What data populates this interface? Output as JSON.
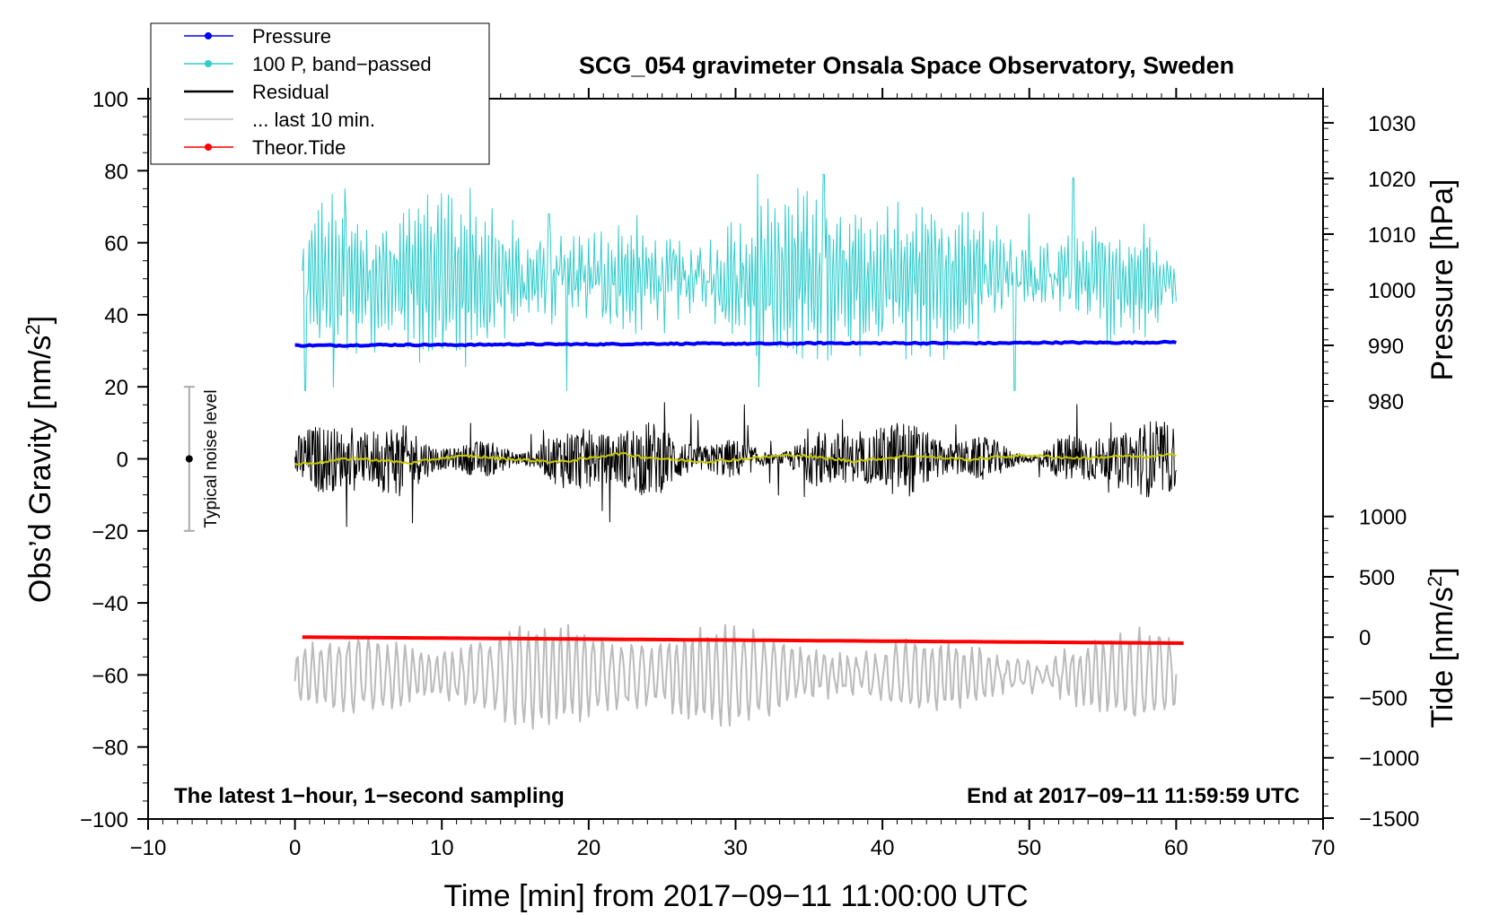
{
  "chart_data": {
    "type": "line",
    "title": "SCG_054 gravimeter Onsala Space Observatory, Sweden",
    "xlabel": "Time [min] from 2017−09−11 11:00:00 UTC",
    "ylabel_main": "Obs’d Gravity [nm/s",
    "ylabel_sup": "2",
    "ylabel_close": "]",
    "ylabel_pressure": "Pressure [hPa]",
    "ylabel_tide": "Tide [nm/s",
    "ylabel_tide_sup": "2",
    "ylabel_tide_close": "]",
    "xlim": [
      -10,
      70
    ],
    "ylim": [
      -100,
      100
    ],
    "x_ticks": [
      "−10",
      "0",
      "10",
      "20",
      "30",
      "40",
      "50",
      "60",
      "70"
    ],
    "x_tick_values": [
      -10,
      0,
      10,
      20,
      30,
      40,
      50,
      60,
      70
    ],
    "y_ticks": [
      "100",
      "80",
      "60",
      "40",
      "20",
      "0",
      "−20",
      "−40",
      "−60",
      "−80",
      "−100"
    ],
    "y_tick_values": [
      100,
      80,
      60,
      40,
      20,
      0,
      -20,
      -40,
      -60,
      -80,
      -100
    ],
    "pressure_axis": {
      "ticks": [
        "1030",
        "1020",
        "1010",
        "1000",
        "990",
        "980"
      ],
      "values": [
        1030,
        1020,
        1010,
        1000,
        990,
        980
      ],
      "gravity_at_990": 31.5,
      "gravity_per_hPa": 1.545
    },
    "tide_axis": {
      "ticks": [
        "1000",
        "500",
        "0",
        "−500",
        "−1000",
        "−1500"
      ],
      "values": [
        1000,
        500,
        0,
        -500,
        -1000,
        -1500
      ],
      "gravity_at_0": -49.5,
      "gravity_per_unit": 0.0335
    },
    "bottom_left_note": "The latest 1−hour, 1−second sampling",
    "bottom_right_note": "End at 2017−09−11 11:59:59 UTC",
    "noise_bar": {
      "label": "Typical noise level",
      "x": -7.2,
      "center": 0,
      "low": -20,
      "high": 20
    },
    "legend": [
      {
        "label": "Pressure",
        "color": "#0000ff",
        "marker": true
      },
      {
        "label": "100 P, band−passed",
        "color": "#33cccc",
        "marker": true
      },
      {
        "label": "Residual",
        "color": "#000000",
        "marker": false
      },
      {
        "label": "... last 10 min.",
        "color": "#bbbbbb",
        "marker": false
      },
      {
        "label": "Theor.Tide",
        "color": "#ff0000",
        "marker": true
      }
    ],
    "series": [
      {
        "name": "Pressure",
        "color": "#0000ff",
        "axis": "pressure",
        "x_start": 0,
        "x_end": 60,
        "values": [
          990.0,
          990.0,
          990.1,
          990.1,
          990.1,
          990.2,
          990.2,
          990.2,
          990.3,
          990.3,
          990.3,
          990.3,
          990.4,
          990.4,
          990.4,
          990.4,
          990.4,
          990.5,
          990.5,
          990.5,
          990.6
        ]
      },
      {
        "name": "100 P, band−passed",
        "color": "#33cccc",
        "axis": "gravity",
        "x_start": 0.5,
        "x_end": 60,
        "mean": 50,
        "spread_min": 19,
        "spread_max": 79,
        "peaks": [
          [
            3.4,
            75
          ],
          [
            17.3,
            68
          ],
          [
            31.5,
            80
          ],
          [
            36,
            79
          ],
          [
            53,
            78
          ],
          [
            50,
            68
          ]
        ],
        "troughs": [
          [
            0.7,
            19
          ],
          [
            2.6,
            20
          ],
          [
            18.5,
            18
          ],
          [
            31.6,
            20
          ],
          [
            49,
            19
          ]
        ]
      },
      {
        "name": "Residual",
        "color": "#000000",
        "axis": "gravity",
        "x_start": 0,
        "x_end": 60,
        "mean": 0,
        "min": -21,
        "max": 25
      },
      {
        "name": "Residual (smoothed)",
        "color": "#c8c800",
        "axis": "gravity",
        "x_start": 0,
        "x_end": 60,
        "values": [
          -1.5,
          -0.8,
          0.2,
          -0.5,
          -1.2,
          0.3,
          0.8,
          0.1,
          -0.4,
          -0.9,
          0.2,
          1.5,
          0.4,
          -0.3,
          -0.8,
          -0.2,
          0.5,
          1.1,
          0.2,
          -0.6,
          0.1,
          0.9,
          0.3,
          -0.2,
          0.6,
          1.0,
          0.4,
          0.2,
          0.7,
          0.5,
          1.2
        ]
      },
      {
        "name": "... last 10 min.",
        "color": "#bbbbbb",
        "axis": "gravity",
        "x_start": 0,
        "x_end": 60,
        "mean": -60,
        "min": -80,
        "max": -45
      },
      {
        "name": "Theor.Tide",
        "color": "#ff0000",
        "axis": "tide",
        "x_start": 0.5,
        "x_end": 60.5,
        "values": [
          0,
          -5,
          -10,
          -15,
          -20,
          -25,
          -30,
          -35,
          -40,
          -45,
          -50
        ]
      }
    ]
  }
}
